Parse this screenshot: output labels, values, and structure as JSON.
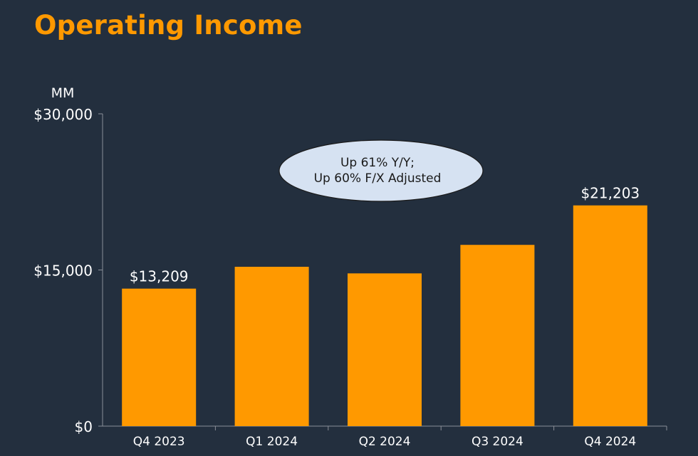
{
  "title": "Operating Income",
  "chart_data": {
    "type": "bar",
    "unit_label": "MM",
    "categories": [
      "Q4 2023",
      "Q1 2024",
      "Q2 2024",
      "Q3 2024",
      "Q4 2024"
    ],
    "values": [
      13209,
      15307,
      14672,
      17411,
      21203
    ],
    "data_labels": [
      "$13,209",
      null,
      null,
      null,
      "$21,203"
    ],
    "ylim": [
      0,
      30000
    ],
    "yticks": [
      0,
      15000,
      30000
    ],
    "ytick_labels": [
      "$0",
      "$15,000",
      "$30,000"
    ],
    "bar_color": "#ff9900",
    "grid": false,
    "annotation": {
      "lines": [
        "Up 61% Y/Y;",
        "Up 60% F/X Adjusted"
      ],
      "fill": "#d6e2f2"
    }
  }
}
